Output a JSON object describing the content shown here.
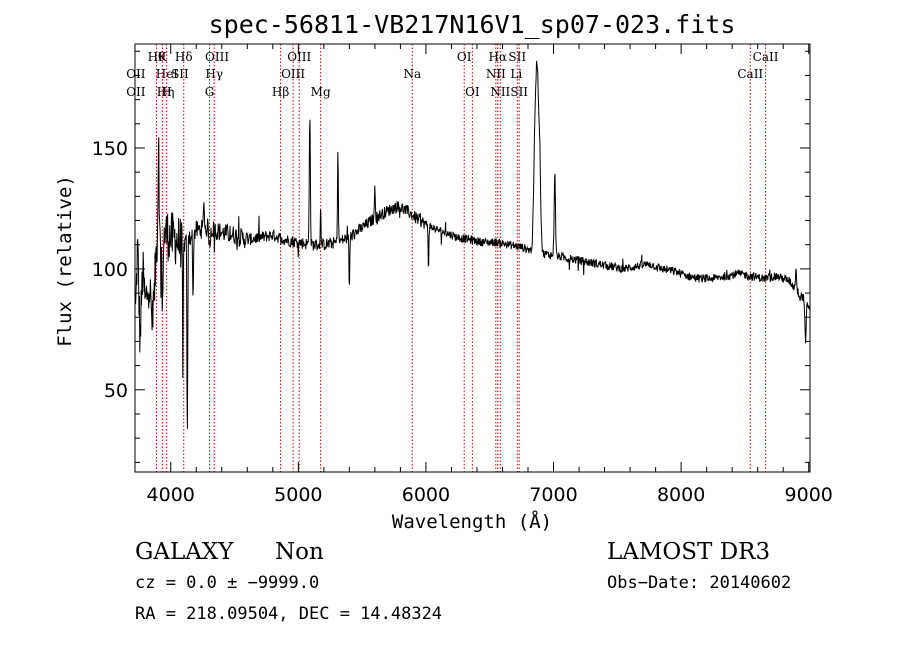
{
  "chart_data": {
    "type": "line",
    "title": "spec-56811-VB217N16V1_sp07-023.fits",
    "xlabel": "Wavelength (Å)",
    "ylabel": "Flux (relative)",
    "xlim": [
      3720,
      9010
    ],
    "ylim": [
      16,
      193
    ],
    "xticks": [
      4000,
      5000,
      6000,
      7000,
      8000,
      9000
    ],
    "yticks": [
      50,
      100,
      150
    ],
    "line_color": "#000000",
    "marker_color": "#cc0000",
    "lines": [
      {
        "label": "Hθ",
        "x": 3888,
        "row": 0
      },
      {
        "label": "OII",
        "x": 3727,
        "row": 1
      },
      {
        "label": "OII",
        "x": 3727,
        "row": 2
      },
      {
        "label": "HeI",
        "x": 3970,
        "row": 1
      },
      {
        "label": "Hη",
        "x": 3960,
        "row": 2
      },
      {
        "label": "K",
        "x": 3934,
        "row": 0
      },
      {
        "label": "Hδ",
        "x": 4102,
        "row": 0
      },
      {
        "label": "SII",
        "x": 4072,
        "row": 1
      },
      {
        "label": "H",
        "x": 3968,
        "row": 2
      },
      {
        "label": "OIII",
        "x": 4363,
        "row": 0
      },
      {
        "label": "Hγ",
        "x": 4341,
        "row": 1
      },
      {
        "label": "G",
        "x": 4304,
        "row": 2
      },
      {
        "label": "OIII",
        "x": 5007,
        "row": 0
      },
      {
        "label": "OIII",
        "x": 4959,
        "row": 1
      },
      {
        "label": "Hβ",
        "x": 4861,
        "row": 2
      },
      {
        "label": "Mg",
        "x": 5175,
        "row": 2
      },
      {
        "label": "Na",
        "x": 5893,
        "row": 1
      },
      {
        "label": "OI",
        "x": 6300,
        "row": 0
      },
      {
        "label": "OI",
        "x": 6364,
        "row": 2
      },
      {
        "label": "Hα",
        "x": 6563,
        "row": 0
      },
      {
        "label": "NII",
        "x": 6548,
        "row": 1
      },
      {
        "label": "NII",
        "x": 6583,
        "row": 2
      },
      {
        "label": "SII",
        "x": 6716,
        "row": 0
      },
      {
        "label": "Li",
        "x": 6708,
        "row": 1
      },
      {
        "label": "SII",
        "x": 6731,
        "row": 2
      },
      {
        "label": "CaII",
        "x": 8662,
        "row": 0
      },
      {
        "label": "CaII",
        "x": 8542,
        "row": 1
      }
    ],
    "marker_positions": [
      3888,
      3934,
      3968,
      4102,
      4304,
      4340,
      4861,
      4959,
      5007,
      5175,
      5893,
      6300,
      6364,
      6548,
      6563,
      6583,
      6716,
      6731,
      8542,
      8662
    ],
    "flux_anchors": [
      [
        3725,
        82
      ],
      [
        3740,
        110
      ],
      [
        3760,
        70
      ],
      [
        3780,
        100
      ],
      [
        3800,
        85
      ],
      [
        3830,
        95
      ],
      [
        3860,
        75
      ],
      [
        3890,
        112
      ],
      [
        3920,
        108
      ],
      [
        3960,
        115
      ],
      [
        4000,
        113
      ],
      [
        4050,
        112
      ],
      [
        4100,
        110
      ],
      [
        4150,
        113
      ],
      [
        4200,
        116
      ],
      [
        4300,
        117
      ],
      [
        4400,
        115
      ],
      [
        4500,
        114
      ],
      [
        4600,
        112
      ],
      [
        4700,
        113
      ],
      [
        4800,
        114
      ],
      [
        4900,
        112
      ],
      [
        5000,
        111
      ],
      [
        5100,
        110
      ],
      [
        5200,
        110
      ],
      [
        5300,
        111
      ],
      [
        5400,
        113
      ],
      [
        5500,
        117
      ],
      [
        5600,
        121
      ],
      [
        5700,
        124
      ],
      [
        5780,
        126
      ],
      [
        5850,
        124
      ],
      [
        5950,
        120
      ],
      [
        6050,
        117
      ],
      [
        6150,
        115
      ],
      [
        6250,
        113
      ],
      [
        6350,
        112
      ],
      [
        6450,
        111
      ],
      [
        6550,
        111
      ],
      [
        6650,
        110
      ],
      [
        6750,
        109
      ],
      [
        6850,
        107
      ],
      [
        6950,
        106
      ],
      [
        7050,
        105
      ],
      [
        7150,
        104
      ],
      [
        7250,
        103
      ],
      [
        7350,
        102
      ],
      [
        7450,
        101
      ],
      [
        7550,
        100
      ],
      [
        7650,
        101
      ],
      [
        7750,
        102
      ],
      [
        7850,
        100
      ],
      [
        7950,
        99
      ],
      [
        8050,
        97
      ],
      [
        8150,
        96
      ],
      [
        8250,
        96
      ],
      [
        8350,
        97
      ],
      [
        8450,
        98
      ],
      [
        8550,
        97
      ],
      [
        8650,
        96
      ],
      [
        8750,
        97
      ],
      [
        8850,
        95
      ],
      [
        8920,
        90
      ],
      [
        8960,
        88
      ],
      [
        9005,
        84
      ]
    ],
    "flux_features": [
      {
        "x": 3905,
        "amp": 50,
        "width": 4
      },
      {
        "x": 3935,
        "amp": -35,
        "width": 3
      },
      {
        "x": 4095,
        "amp": -55,
        "width": 3
      },
      {
        "x": 4130,
        "amp": -85,
        "width": 3
      },
      {
        "x": 4175,
        "amp": -30,
        "width": 3
      },
      {
        "x": 4260,
        "amp": 14,
        "width": 3
      },
      {
        "x": 4305,
        "amp": -10,
        "width": 4
      },
      {
        "x": 5090,
        "amp": 55,
        "width": 4
      },
      {
        "x": 5175,
        "amp": 14,
        "width": 3
      },
      {
        "x": 5310,
        "amp": 40,
        "width": 3
      },
      {
        "x": 5400,
        "amp": -22,
        "width": 3
      },
      {
        "x": 5600,
        "amp": 16,
        "width": 3
      },
      {
        "x": 6020,
        "amp": -18,
        "width": 3
      },
      {
        "x": 6855,
        "amp": 48,
        "width": 10
      },
      {
        "x": 6872,
        "amp": 62,
        "width": 9
      },
      {
        "x": 6890,
        "amp": 42,
        "width": 9
      },
      {
        "x": 7010,
        "amp": 35,
        "width": 5
      },
      {
        "x": 8900,
        "amp": 10,
        "width": 4
      },
      {
        "x": 8975,
        "amp": -18,
        "width": 5
      }
    ]
  },
  "info": {
    "class": "GALAXY",
    "subclass": "Non",
    "survey": "LAMOST DR3",
    "cz": "cz = 0.0 ± −9999.0",
    "obs_date": "Obs−Date: 20140602",
    "coords": "RA = 218.09504, DEC =  14.48324"
  }
}
